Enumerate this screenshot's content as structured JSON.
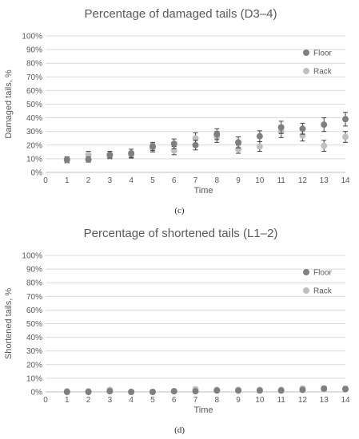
{
  "colors": {
    "floor": "#7f7f7f",
    "rack": "#bfbfbf",
    "error_bar": "#404040"
  },
  "panel_labels": [
    "(c)",
    "(d)"
  ],
  "chart_data": [
    {
      "type": "scatter",
      "title": "Percentage of damaged tails (D3–4)",
      "xlabel": "Time",
      "ylabel": "Damaged tails, %",
      "xlim": [
        0,
        14
      ],
      "ylim": [
        0,
        100
      ],
      "x_ticks": [
        0,
        1,
        2,
        3,
        4,
        5,
        6,
        7,
        8,
        9,
        10,
        11,
        12,
        13,
        14
      ],
      "y_ticks": [
        0,
        10,
        20,
        30,
        40,
        50,
        60,
        70,
        80,
        90,
        100
      ],
      "y_tick_labels": [
        "0%",
        "10%",
        "20%",
        "30%",
        "40%",
        "50%",
        "60%",
        "70%",
        "80%",
        "90%",
        "100%"
      ],
      "grid": "horizontal",
      "legend_position": "right",
      "series": [
        {
          "name": "Floor",
          "x": [
            1,
            2,
            3,
            4,
            5,
            6,
            7,
            8,
            9,
            10,
            11,
            12,
            13,
            14
          ],
          "y": [
            9.5,
            9.5,
            13,
            14,
            19,
            21,
            20,
            28,
            22,
            26.5,
            33,
            32,
            35,
            39
          ],
          "err": [
            2,
            2,
            2.5,
            3,
            3,
            3.5,
            3.5,
            4,
            4,
            4,
            4.5,
            4,
            5,
            5
          ]
        },
        {
          "name": "Rack",
          "x": [
            1,
            2,
            3,
            4,
            5,
            6,
            7,
            8,
            9,
            10,
            11,
            12,
            13,
            14
          ],
          "y": [
            9,
            13,
            12,
            13,
            18,
            16,
            25,
            26,
            17,
            19,
            30,
            27,
            19.5,
            26
          ],
          "err": [
            2,
            2.5,
            2,
            2.5,
            3,
            3,
            4,
            4,
            3,
            3.5,
            4.5,
            4,
            4,
            4
          ]
        }
      ]
    },
    {
      "type": "scatter",
      "title": "Percentage of shortened tails (L1–2)",
      "xlabel": "Time",
      "ylabel": "Shortened tails, %",
      "xlim": [
        0,
        14
      ],
      "ylim": [
        0,
        100
      ],
      "x_ticks": [
        0,
        1,
        2,
        3,
        4,
        5,
        6,
        7,
        8,
        9,
        10,
        11,
        12,
        13,
        14
      ],
      "y_ticks": [
        0,
        10,
        20,
        30,
        40,
        50,
        60,
        70,
        80,
        90,
        100
      ],
      "y_tick_labels": [
        "0%",
        "10%",
        "20%",
        "30%",
        "40%",
        "50%",
        "60%",
        "70%",
        "80%",
        "90%",
        "100%"
      ],
      "grid": "horizontal",
      "legend_position": "right",
      "series": [
        {
          "name": "Floor",
          "x": [
            1,
            2,
            3,
            4,
            5,
            6,
            7,
            8,
            9,
            10,
            11,
            12,
            13,
            14
          ],
          "y": [
            0,
            0,
            0.5,
            0,
            0,
            0.5,
            0.5,
            1,
            1,
            1,
            1,
            1.5,
            2.5,
            2
          ],
          "err": [
            0.5,
            0.5,
            1,
            0.5,
            0.5,
            1,
            1,
            1,
            1,
            1,
            1,
            1,
            1.5,
            1.5
          ]
        },
        {
          "name": "Rack",
          "x": [
            1,
            2,
            3,
            4,
            5,
            6,
            7,
            8,
            9,
            10,
            11,
            12,
            13,
            14
          ],
          "y": [
            0.5,
            0.5,
            1.5,
            0,
            0,
            0.5,
            2,
            1.5,
            1.5,
            1.5,
            1.5,
            2.5,
            2,
            2.5
          ],
          "err": [
            0.5,
            0.5,
            1,
            0.5,
            0.5,
            1,
            1.5,
            1,
            1,
            1,
            1,
            1.5,
            1.5,
            1.5
          ]
        }
      ]
    }
  ]
}
